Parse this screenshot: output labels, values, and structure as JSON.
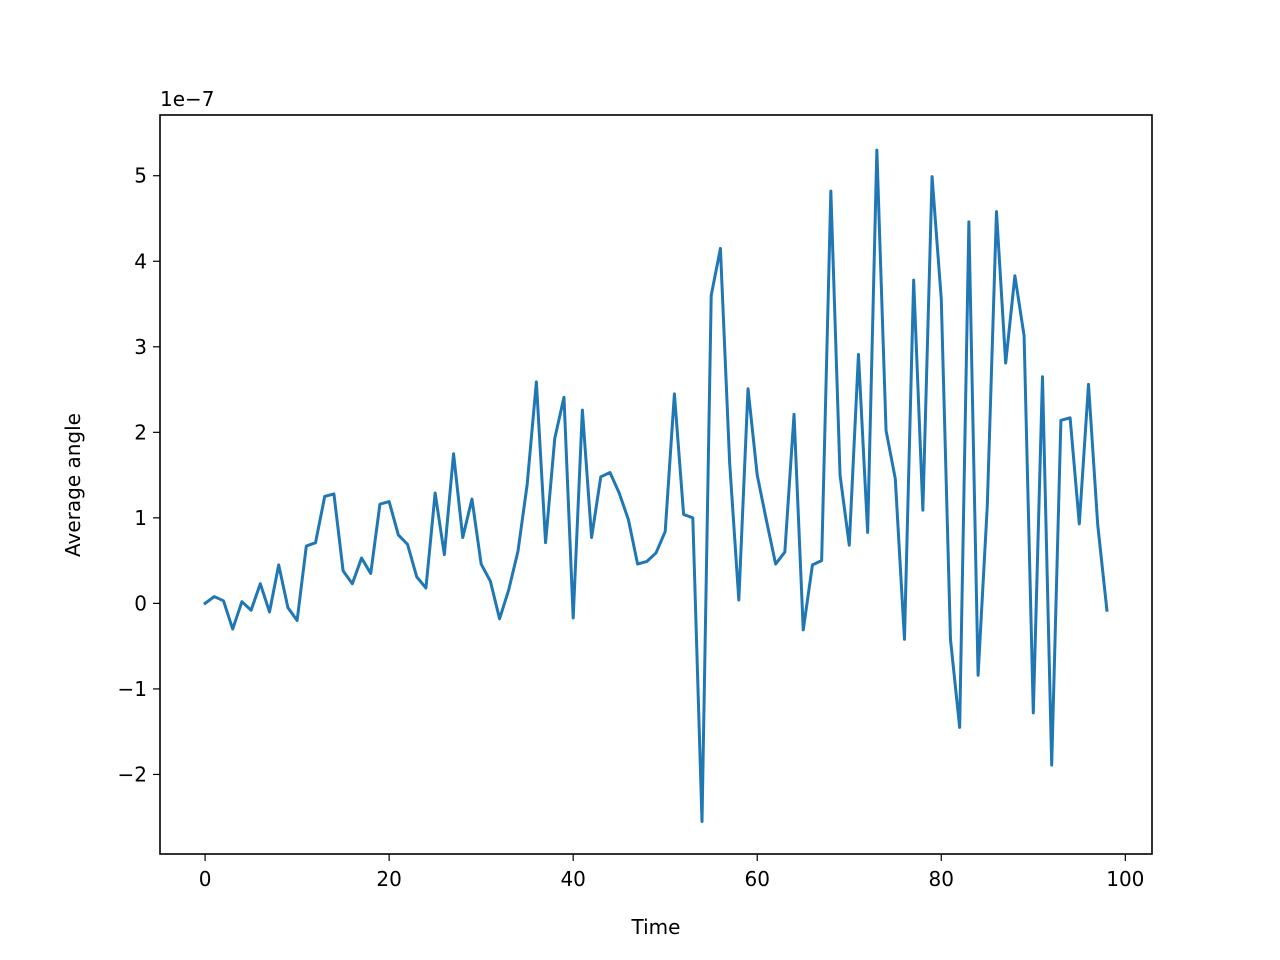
{
  "chart_data": {
    "type": "line",
    "xlabel": "Time",
    "ylabel": "Average angle",
    "scale_label": "1e−7",
    "xlim": [
      -4.9,
      102.9
    ],
    "ylim": [
      -2.93,
      5.71
    ],
    "xticks": [
      0,
      20,
      40,
      60,
      80,
      100
    ],
    "xtick_labels": [
      "0",
      "20",
      "40",
      "60",
      "80",
      "100"
    ],
    "yticks": [
      -2,
      -1,
      0,
      1,
      2,
      3,
      4,
      5
    ],
    "ytick_labels": [
      "−2",
      "−1",
      "0",
      "1",
      "2",
      "3",
      "4",
      "5"
    ],
    "grid": false,
    "series": [
      {
        "color": "#1f77b4",
        "x": [
          0,
          1,
          2,
          3,
          4,
          5,
          6,
          7,
          8,
          9,
          10,
          11,
          12,
          13,
          14,
          15,
          16,
          17,
          18,
          19,
          20,
          21,
          22,
          23,
          24,
          25,
          26,
          27,
          28,
          29,
          30,
          31,
          32,
          33,
          34,
          35,
          36,
          37,
          38,
          39,
          40,
          41,
          42,
          43,
          44,
          45,
          46,
          47,
          48,
          49,
          50,
          51,
          52,
          53,
          54,
          55,
          56,
          57,
          58,
          59,
          60,
          61,
          62,
          63,
          64,
          65,
          66,
          67,
          68,
          69,
          70,
          71,
          72,
          73,
          74,
          75,
          76,
          77,
          78,
          79,
          80,
          81,
          82,
          83,
          84,
          85,
          86,
          87,
          88,
          89,
          90,
          91,
          92,
          93,
          94,
          95,
          96,
          97,
          98
        ],
        "values": [
          0.0,
          0.08,
          0.03,
          -0.3,
          0.02,
          -0.08,
          0.23,
          -0.1,
          0.45,
          -0.05,
          -0.2,
          0.67,
          0.71,
          1.25,
          1.28,
          0.38,
          0.23,
          0.53,
          0.35,
          1.16,
          1.19,
          0.8,
          0.69,
          0.31,
          0.18,
          1.29,
          0.57,
          1.75,
          0.77,
          1.22,
          0.46,
          0.26,
          -0.18,
          0.16,
          0.61,
          1.39,
          2.59,
          0.71,
          1.93,
          2.41,
          -0.17,
          2.26,
          0.77,
          1.48,
          1.53,
          1.29,
          0.98,
          0.46,
          0.49,
          0.59,
          0.84,
          2.45,
          1.04,
          1.0,
          -2.55,
          3.6,
          4.15,
          1.65,
          0.04,
          2.51,
          1.5,
          0.97,
          0.46,
          0.6,
          2.21,
          -0.31,
          0.45,
          0.5,
          4.82,
          1.5,
          0.68,
          2.91,
          0.83,
          5.3,
          2.02,
          1.46,
          -0.42,
          3.78,
          1.09,
          4.99,
          3.56,
          -0.42,
          -1.45,
          4.46,
          -0.84,
          1.14,
          4.58,
          2.81,
          3.83,
          3.13,
          -1.28,
          2.65,
          -1.89,
          2.14,
          2.17,
          0.93,
          2.56,
          0.92,
          -0.08
        ]
      }
    ]
  }
}
